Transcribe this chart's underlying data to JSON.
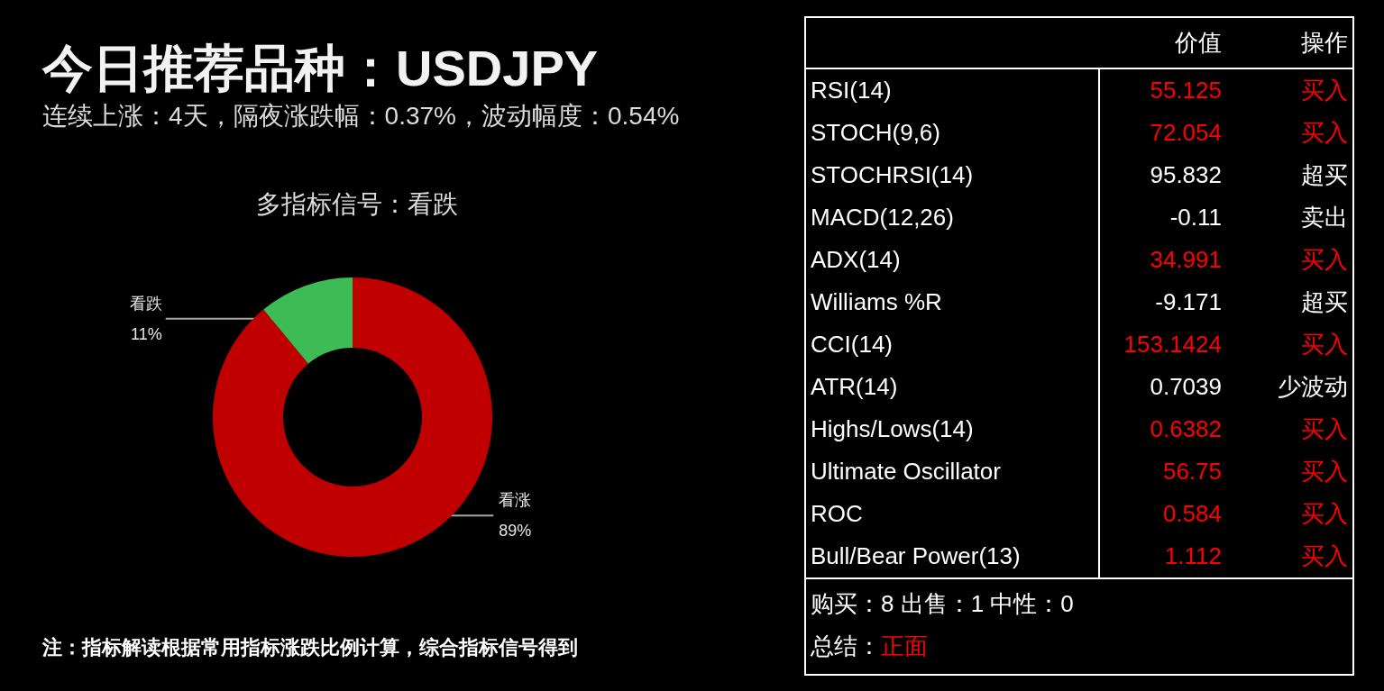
{
  "chart_data": [
    {
      "type": "other",
      "title": "今日推荐品种：USDJPY",
      "subtitle": "连续上涨：4天，隔夜涨跌幅：0.37%，波动幅度：0.54%"
    },
    {
      "type": "donut",
      "title": "多指标信号：看跌",
      "categories": [
        "看涨",
        "看跌"
      ],
      "values": [
        89,
        11
      ],
      "colors": [
        "#c00000",
        "#3dbb55"
      ],
      "value_labels": [
        "89%",
        "11%"
      ],
      "annotations": [
        "注：指标解读根据常用指标涨跌比例计算，综合指标信号得到"
      ]
    },
    {
      "type": "other",
      "categories": [
        "价值",
        "操作"
      ],
      "y_categories": [
        "RSI(14)",
        "STOCH(9,6)",
        "STOCHRSI(14)",
        "MACD(12,26)",
        "ADX(14)",
        "Williams %R",
        "CCI(14)",
        "ATR(14)",
        "Highs/Lows(14)",
        "Ultimate Oscillator",
        "ROC",
        "Bull/Bear Power(13)"
      ],
      "cell_labels": [
        [
          "55.125",
          "买入"
        ],
        [
          "72.054",
          "买入"
        ],
        [
          "95.832",
          "超买"
        ],
        [
          "-0.11",
          "卖出"
        ],
        [
          "34.991",
          "买入"
        ],
        [
          "-9.171",
          "超买"
        ],
        [
          "153.1424",
          "买入"
        ],
        [
          "0.7039",
          "少波动"
        ],
        [
          "0.6382",
          "买入"
        ],
        [
          "56.75",
          "买入"
        ],
        [
          "0.584",
          "买入"
        ],
        [
          "1.112",
          "买入"
        ]
      ],
      "colors": [
        "#ff0000",
        "#ff0000",
        "#ffffff",
        "#ffffff",
        "#ff0000",
        "#ffffff",
        "#ff0000",
        "#ffffff",
        "#ff0000",
        "#ff0000",
        "#ff0000",
        "#ff0000"
      ],
      "annotations": [
        "购买：8 出售：1 中性：0",
        "总结：",
        "正面"
      ]
    }
  ]
}
